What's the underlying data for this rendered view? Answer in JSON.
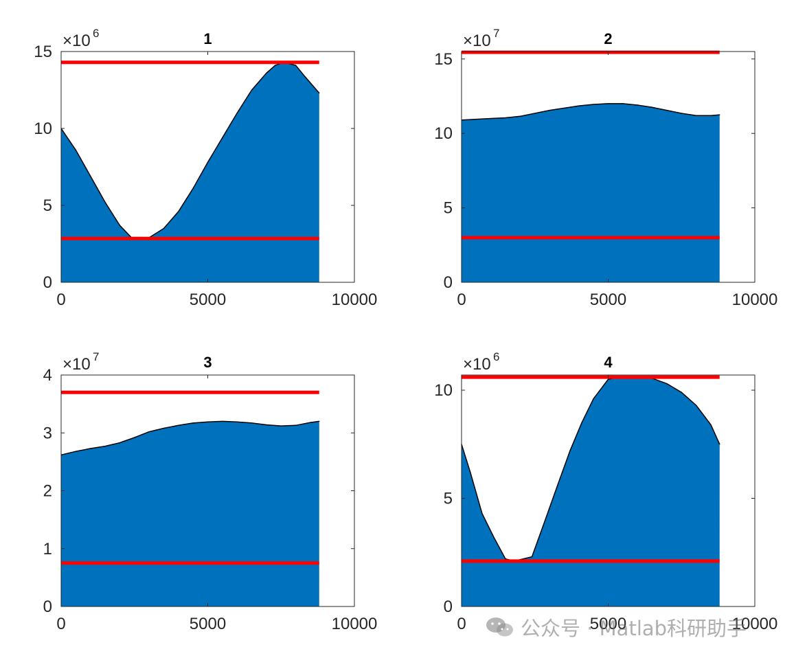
{
  "colors": {
    "area_fill": "#0072BD",
    "area_edge": "#000000",
    "threshold_line": "#FF0000",
    "axis": "#262626"
  },
  "watermark": {
    "text": "公众号 · Matlab科研助手",
    "icon": "wechat-icon"
  },
  "chart_data": [
    {
      "type": "area",
      "title": "1",
      "exponent_base": "×10",
      "exponent_power": "6",
      "xlim": [
        0,
        10000
      ],
      "ylim": [
        0,
        15000000
      ],
      "xticks": [
        0,
        5000,
        10000
      ],
      "xtick_labels": [
        "0",
        "5000",
        "10000"
      ],
      "yticks": [
        0,
        5000000,
        10000000,
        15000000
      ],
      "ytick_labels": [
        "0",
        "5",
        "10",
        "15"
      ],
      "x": [
        0,
        500,
        1000,
        1500,
        2000,
        2400,
        2700,
        3000,
        3500,
        4000,
        4500,
        5000,
        5500,
        6000,
        6500,
        7000,
        7300,
        7600,
        8000,
        8300,
        8800
      ],
      "y": [
        10000000,
        8600000,
        6900000,
        5200000,
        3700000,
        2900000,
        2850000,
        2900000,
        3500000,
        4600000,
        6100000,
        7800000,
        9400000,
        11000000,
        12500000,
        13600000,
        14100000,
        14300000,
        14100000,
        13400000,
        12300000
      ],
      "hlines": [
        14300000,
        2850000
      ],
      "grid": false
    },
    {
      "type": "area",
      "title": "2",
      "exponent_base": "×10",
      "exponent_power": "7",
      "xlim": [
        0,
        10000
      ],
      "ylim": [
        0,
        155000000
      ],
      "xticks": [
        0,
        5000,
        10000
      ],
      "xtick_labels": [
        "0",
        "5000",
        "10000"
      ],
      "yticks": [
        0,
        50000000,
        100000000,
        150000000
      ],
      "ytick_labels": [
        "0",
        "5",
        "10",
        "15"
      ],
      "x": [
        0,
        500,
        1000,
        1500,
        2000,
        2500,
        3000,
        3500,
        4000,
        4500,
        5000,
        5500,
        6000,
        6500,
        7000,
        7500,
        8000,
        8500,
        8800
      ],
      "y": [
        109000000,
        109500000,
        110000000,
        110500000,
        111500000,
        113500000,
        115500000,
        117000000,
        118500000,
        119500000,
        120000000,
        120000000,
        119000000,
        117500000,
        115500000,
        113500000,
        112000000,
        112000000,
        112500000
      ],
      "hlines": [
        154500000,
        30000000
      ],
      "grid": false
    },
    {
      "type": "area",
      "title": "3",
      "exponent_base": "×10",
      "exponent_power": "7",
      "xlim": [
        0,
        10000
      ],
      "ylim": [
        0,
        40000000
      ],
      "xticks": [
        0,
        5000,
        10000
      ],
      "xtick_labels": [
        "0",
        "5000",
        "10000"
      ],
      "yticks": [
        0,
        10000000,
        20000000,
        30000000,
        40000000
      ],
      "ytick_labels": [
        "0",
        "1",
        "2",
        "3",
        "4"
      ],
      "x": [
        0,
        500,
        1000,
        1500,
        2000,
        2500,
        3000,
        3500,
        4000,
        4500,
        5000,
        5500,
        6000,
        6500,
        7000,
        7500,
        8000,
        8500,
        8800
      ],
      "y": [
        26200000,
        26800000,
        27300000,
        27700000,
        28300000,
        29200000,
        30200000,
        30800000,
        31300000,
        31700000,
        31900000,
        32000000,
        31900000,
        31700000,
        31400000,
        31200000,
        31300000,
        31800000,
        32000000
      ],
      "hlines": [
        37000000,
        7500000
      ],
      "grid": false
    },
    {
      "type": "area",
      "title": "4",
      "exponent_base": "×10",
      "exponent_power": "6",
      "xlim": [
        0,
        10000
      ],
      "ylim": [
        0,
        10700000
      ],
      "xticks": [
        0,
        5000,
        10000
      ],
      "xtick_labels": [
        "0",
        "5000",
        "10000"
      ],
      "yticks": [
        0,
        5000000,
        10000000
      ],
      "ytick_labels": [
        "0",
        "5",
        "10"
      ],
      "x": [
        0,
        300,
        700,
        1100,
        1500,
        1800,
        2100,
        2400,
        2800,
        3300,
        3700,
        4100,
        4500,
        5000,
        5500,
        6000,
        6500,
        7000,
        7500,
        8000,
        8500,
        8800
      ],
      "y": [
        7500000,
        6200000,
        4300000,
        3200000,
        2200000,
        2100000,
        2200000,
        2300000,
        3800000,
        5700000,
        7200000,
        8500000,
        9600000,
        10500000,
        10650000,
        10600000,
        10550000,
        10300000,
        9900000,
        9300000,
        8400000,
        7500000
      ],
      "hlines": [
        10600000,
        2100000
      ],
      "grid": false
    }
  ]
}
